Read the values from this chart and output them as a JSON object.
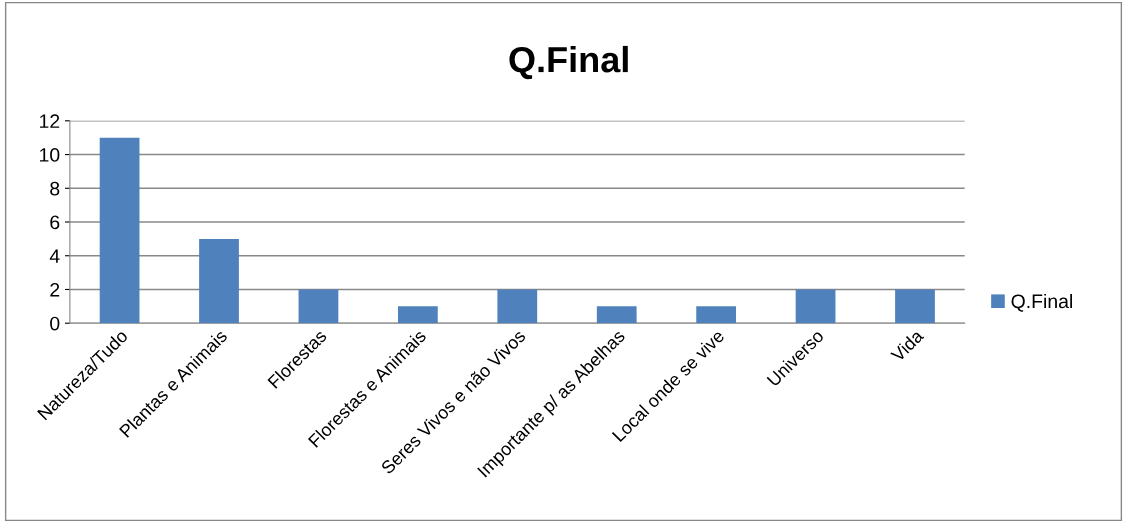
{
  "chart_data": {
    "type": "bar",
    "title": "Q.Final",
    "categories": [
      "Natureza/Tudo",
      "Plantas e Animais",
      "Florestas",
      "Florestas e Animais",
      "Seres Vivos e não Vivos",
      "Importante p/ as Abelhas",
      "Local onde se vive",
      "Universo",
      "Vida"
    ],
    "series": [
      {
        "name": "Q.Final",
        "color": "#4f81bd",
        "values": [
          11,
          5,
          2,
          1,
          2,
          1,
          1,
          2,
          2
        ]
      }
    ],
    "ylim": [
      0,
      12
    ],
    "yticks": [
      0,
      2,
      4,
      6,
      8,
      10,
      12
    ],
    "grid": "y",
    "legend": "right"
  }
}
